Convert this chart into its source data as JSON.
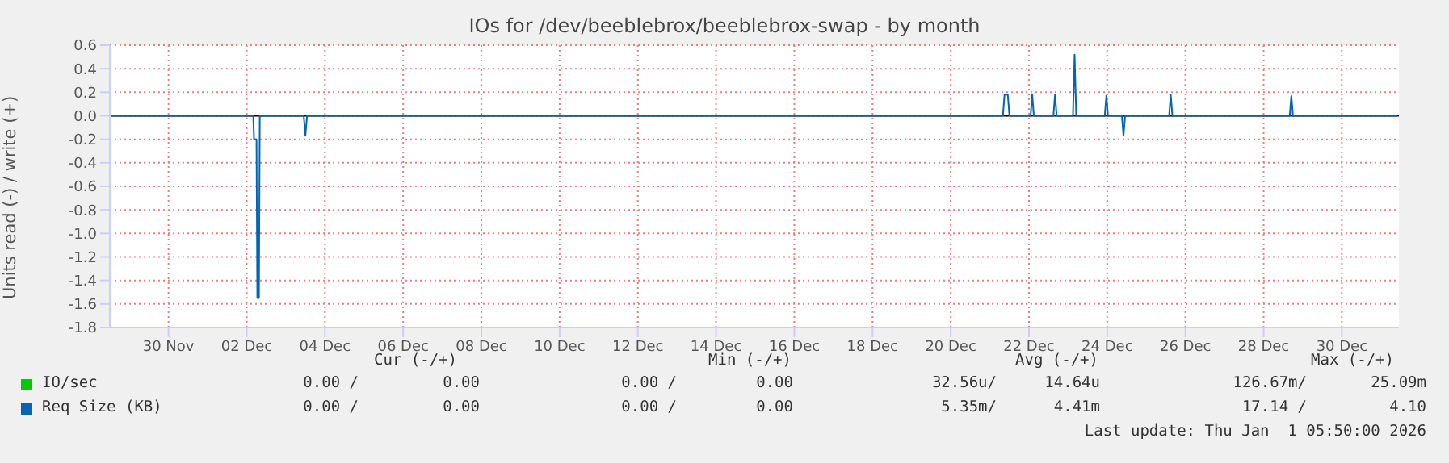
{
  "chart_data": {
    "type": "line",
    "title": "IOs for /dev/beeblebrox/beeblebrox-swap - by month",
    "ylabel": "Units read (-) / write (+)",
    "xlim": [
      "--11-28T12:00",
      "--12-31T11:00"
    ],
    "xticks": [
      {
        "value": "--11-30",
        "label": "30 Nov"
      },
      {
        "value": "--12-02",
        "label": "02 Dec"
      },
      {
        "value": "--12-04",
        "label": "04 Dec"
      },
      {
        "value": "--12-06",
        "label": "06 Dec"
      },
      {
        "value": "--12-08",
        "label": "08 Dec"
      },
      {
        "value": "--12-10",
        "label": "10 Dec"
      },
      {
        "value": "--12-12",
        "label": "12 Dec"
      },
      {
        "value": "--12-14",
        "label": "14 Dec"
      },
      {
        "value": "--12-16",
        "label": "16 Dec"
      },
      {
        "value": "--12-18",
        "label": "18 Dec"
      },
      {
        "value": "--12-20",
        "label": "20 Dec"
      },
      {
        "value": "--12-22",
        "label": "22 Dec"
      },
      {
        "value": "--12-24",
        "label": "24 Dec"
      },
      {
        "value": "--12-26",
        "label": "26 Dec"
      },
      {
        "value": "--12-28",
        "label": "28 Dec"
      },
      {
        "value": "--12-30",
        "label": "30 Dec"
      }
    ],
    "ylim": [
      -1.8,
      0.6
    ],
    "yticks": [
      {
        "value": 0.6,
        "label": "0.6"
      },
      {
        "value": 0.4,
        "label": "0.4"
      },
      {
        "value": 0.2,
        "label": "0.2"
      },
      {
        "value": 0,
        "label": "0.0"
      },
      {
        "value": -0.2,
        "label": "-0.2"
      },
      {
        "value": -0.4,
        "label": "-0.4"
      },
      {
        "value": -0.6,
        "label": "-0.6"
      },
      {
        "value": -0.8,
        "label": "-0.8"
      },
      {
        "value": -1,
        "label": "-1.0"
      },
      {
        "value": -1.2,
        "label": "-1.2"
      },
      {
        "value": -1.4,
        "label": "-1.4"
      },
      {
        "value": -1.6,
        "label": "-1.6"
      },
      {
        "value": -1.8,
        "label": "-1.8"
      }
    ],
    "grid": true,
    "legend": "bottom left",
    "marker": "none",
    "line_style": "solid",
    "ref_lines": [
      {
        "axis": "y",
        "value": 0,
        "color": "#000000"
      }
    ],
    "series": [
      {
        "name": "Req Size (KB)",
        "color": "#0066b3",
        "x": [
          "--11-28T13:00",
          "--12-02T04:00",
          "--12-02T04:30",
          "--12-02T06:00",
          "--12-02T06:30",
          "--12-02T07:30",
          "--12-02T08:00",
          "--12-03T11:00",
          "--12-03T12:00",
          "--12-03T13:00",
          "--12-21T08:00",
          "--12-21T09:00",
          "--12-21T11:00",
          "--12-21T12:00",
          "--12-22T01:00",
          "--12-22T02:00",
          "--12-22T03:00",
          "--12-22T15:00",
          "--12-22T16:00",
          "--12-22T17:00",
          "--12-23T03:00",
          "--12-23T04:00",
          "--12-23T05:00",
          "--12-23T22:30",
          "--12-23T23:30",
          "--12-24T00:30",
          "--12-24T09:00",
          "--12-24T10:00",
          "--12-24T11:00",
          "--12-25T14:00",
          "--12-25T15:00",
          "--12-25T16:00",
          "--12-28T16:00",
          "--12-28T17:00",
          "--12-28T18:00",
          "--12-31T10:00"
        ],
        "values": [
          0,
          0,
          -0.2,
          -0.2,
          -1.55,
          -1.55,
          0,
          0,
          -0.17,
          0,
          0,
          0.18,
          0.18,
          0,
          0,
          0.18,
          0,
          0,
          0.18,
          0,
          0,
          0.52,
          0,
          0,
          0.17,
          0,
          0,
          -0.17,
          0,
          0,
          0.18,
          0,
          0,
          0.17,
          0,
          0
        ]
      },
      {
        "name": "IO/sec",
        "color": "#00cc00"
      }
    ],
    "annotations": [
      "Cur (-/+)",
      "Min (-/+)",
      "Avg (-/+)",
      "Max (-/+)",
      "0.00 /",
      "0.00",
      "0.00 /",
      "0.00",
      "32.56u/",
      "14.64u",
      "126.67m/",
      "25.09m",
      "0.00 /",
      "0.00",
      "0.00 /",
      "0.00",
      "5.35m/",
      "4.41m",
      "17.14 /",
      "4.10",
      "Last update: Thu Jan  1 05:50:00 2026"
    ]
  }
}
